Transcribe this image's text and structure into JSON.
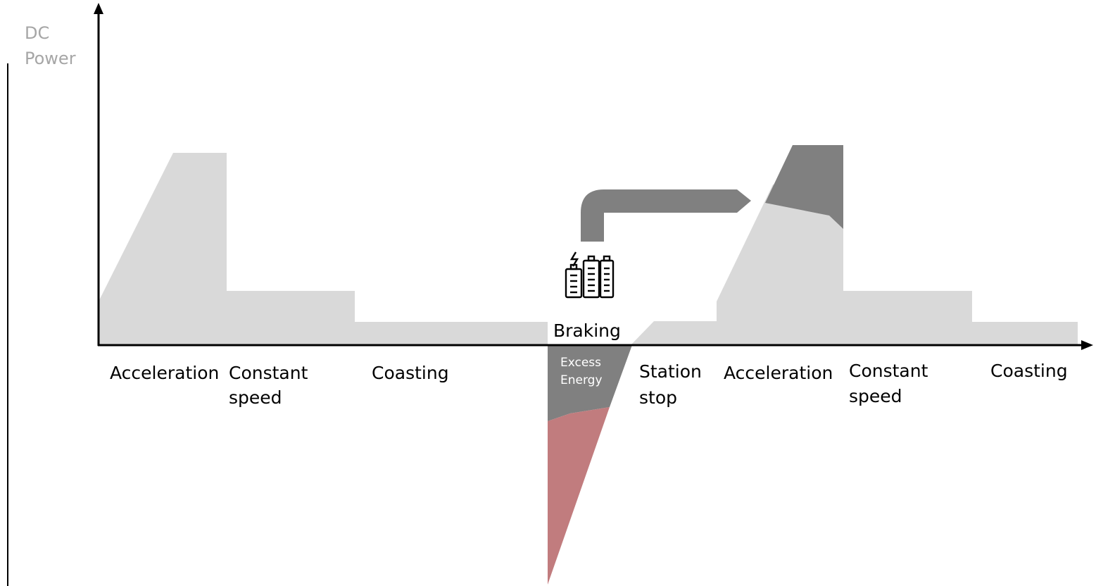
{
  "y_axis_label": [
    "DC",
    "Power"
  ],
  "phases": [
    {
      "id": "acceleration-1",
      "lines": [
        "Acceleration"
      ]
    },
    {
      "id": "constant-speed-1",
      "lines": [
        "Constant",
        "speed"
      ]
    },
    {
      "id": "coasting-1",
      "lines": [
        "Coasting"
      ]
    },
    {
      "id": "braking",
      "lines": [
        "Braking"
      ]
    },
    {
      "id": "station-stop",
      "lines": [
        "Station",
        "stop"
      ]
    },
    {
      "id": "acceleration-2",
      "lines": [
        "Acceleration"
      ]
    },
    {
      "id": "constant-speed-2",
      "lines": [
        "Constant",
        "speed"
      ]
    },
    {
      "id": "coasting-2",
      "lines": [
        "Coasting"
      ]
    }
  ],
  "excess_energy_label": [
    "Excess",
    "Energy"
  ],
  "icon": "battery-storage-icon",
  "colors": {
    "power_fill": "#d9d9d9",
    "excess_energy": "#808080",
    "dissipated_energy": "#c17c7e",
    "reuse_arrow": "#808080",
    "axis": "#000000",
    "y_label": "#a6a6a6"
  }
}
